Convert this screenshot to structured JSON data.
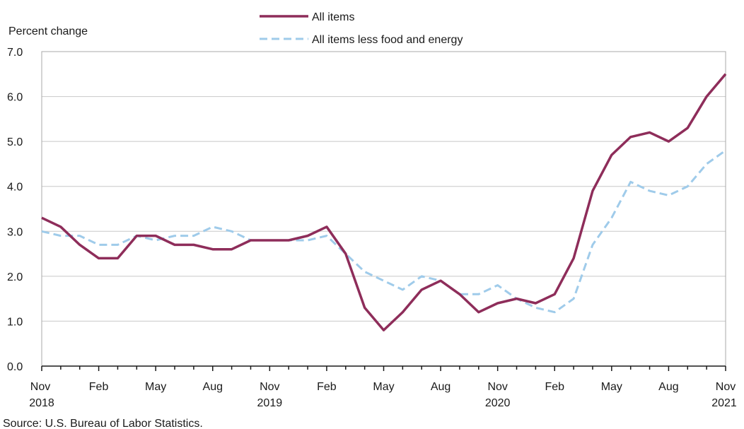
{
  "chart_data": {
    "type": "line",
    "title": "",
    "ylabel": "Percent change",
    "xlabel": "",
    "ylim": [
      0,
      7
    ],
    "y_ticks": [
      "0.0",
      "1.0",
      "2.0",
      "3.0",
      "4.0",
      "5.0",
      "6.0",
      "7.0"
    ],
    "grid": true,
    "legend_position": "top-center",
    "x": [
      "2018-11",
      "2018-12",
      "2019-01",
      "2019-02",
      "2019-03",
      "2019-04",
      "2019-05",
      "2019-06",
      "2019-07",
      "2019-08",
      "2019-09",
      "2019-10",
      "2019-11",
      "2019-12",
      "2020-01",
      "2020-02",
      "2020-03",
      "2020-04",
      "2020-05",
      "2020-06",
      "2020-07",
      "2020-08",
      "2020-09",
      "2020-10",
      "2020-11",
      "2020-12",
      "2021-01",
      "2021-02",
      "2021-03",
      "2021-04",
      "2021-05",
      "2021-06",
      "2021-07",
      "2021-08",
      "2021-09",
      "2021-10",
      "2021-11"
    ],
    "x_tick_labels": [
      {
        "month": "Nov",
        "year": "2018"
      },
      {
        "month": "Feb",
        "year": ""
      },
      {
        "month": "May",
        "year": ""
      },
      {
        "month": "Aug",
        "year": ""
      },
      {
        "month": "Nov",
        "year": "2019"
      },
      {
        "month": "Feb",
        "year": ""
      },
      {
        "month": "May",
        "year": ""
      },
      {
        "month": "Aug",
        "year": ""
      },
      {
        "month": "Nov",
        "year": "2020"
      },
      {
        "month": "Feb",
        "year": ""
      },
      {
        "month": "May",
        "year": ""
      },
      {
        "month": "Aug",
        "year": ""
      },
      {
        "month": "Nov",
        "year": "2021"
      }
    ],
    "series": [
      {
        "name": "All items",
        "color": "#8e2d5a",
        "style": "solid",
        "values": [
          3.3,
          3.1,
          2.7,
          2.4,
          2.4,
          2.9,
          2.9,
          2.7,
          2.7,
          2.6,
          2.6,
          2.8,
          2.8,
          2.8,
          2.9,
          3.1,
          2.5,
          1.3,
          0.8,
          1.2,
          1.7,
          1.9,
          1.6,
          1.2,
          1.4,
          1.5,
          1.4,
          1.6,
          2.4,
          3.9,
          4.7,
          5.1,
          5.2,
          5.0,
          5.3,
          6.0,
          6.5
        ]
      },
      {
        "name": "All items less food and energy",
        "color": "#9fcbea",
        "style": "dashed",
        "values": [
          3.0,
          2.9,
          2.9,
          2.7,
          2.7,
          2.9,
          2.8,
          2.9,
          2.9,
          3.1,
          3.0,
          2.8,
          2.8,
          2.8,
          2.8,
          2.9,
          2.5,
          2.1,
          1.9,
          1.7,
          2.0,
          1.9,
          1.6,
          1.6,
          1.8,
          1.5,
          1.3,
          1.2,
          1.5,
          2.7,
          3.3,
          4.1,
          3.9,
          3.8,
          4.0,
          4.5,
          4.8
        ]
      }
    ]
  },
  "source": "Source: U.S. Bureau of Labor Statistics."
}
